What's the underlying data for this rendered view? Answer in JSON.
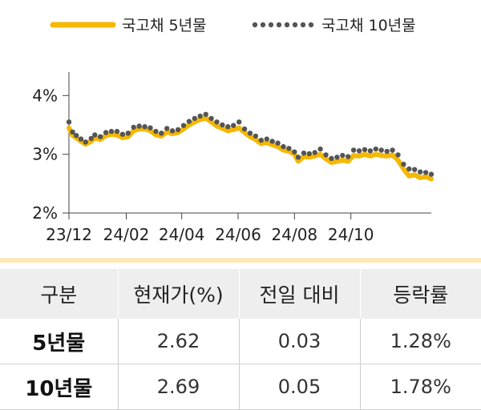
{
  "chart_data": {
    "type": "line",
    "title": "",
    "xlabel": "",
    "ylabel": "",
    "ylim": [
      2,
      4.4
    ],
    "yticks": [
      2,
      3,
      4
    ],
    "ytick_labels": [
      "2%",
      "3%",
      "4%"
    ],
    "xtick_labels": [
      "23/12",
      "24/02",
      "24/04",
      "24/06",
      "24/08",
      "24/10"
    ],
    "legend_position": "top",
    "grid": false,
    "colors": {
      "series_5y": "#f5b700",
      "series_10y": "#555555"
    },
    "x_start": "2023-12-01",
    "x_end": "2024-12-27",
    "series": [
      {
        "name": "국고채 5년물",
        "style": "solid",
        "points": [
          [
            "2023-12-01",
            3.45
          ],
          [
            "2023-12-05",
            3.32
          ],
          [
            "2023-12-09",
            3.28
          ],
          [
            "2023-12-14",
            3.22
          ],
          [
            "2023-12-19",
            3.17
          ],
          [
            "2023-12-25",
            3.22
          ],
          [
            "2023-12-29",
            3.28
          ],
          [
            "2024-01-04",
            3.25
          ],
          [
            "2024-01-10",
            3.32
          ],
          [
            "2024-01-16",
            3.34
          ],
          [
            "2024-01-22",
            3.33
          ],
          [
            "2024-01-28",
            3.28
          ],
          [
            "2024-02-03",
            3.3
          ],
          [
            "2024-02-09",
            3.4
          ],
          [
            "2024-02-15",
            3.43
          ],
          [
            "2024-02-21",
            3.43
          ],
          [
            "2024-02-27",
            3.4
          ],
          [
            "2024-03-04",
            3.33
          ],
          [
            "2024-03-10",
            3.31
          ],
          [
            "2024-03-16",
            3.38
          ],
          [
            "2024-03-22",
            3.35
          ],
          [
            "2024-03-28",
            3.37
          ],
          [
            "2024-04-03",
            3.43
          ],
          [
            "2024-04-09",
            3.5
          ],
          [
            "2024-04-15",
            3.55
          ],
          [
            "2024-04-21",
            3.59
          ],
          [
            "2024-04-27",
            3.62
          ],
          [
            "2024-05-03",
            3.55
          ],
          [
            "2024-05-09",
            3.48
          ],
          [
            "2024-05-15",
            3.44
          ],
          [
            "2024-05-21",
            3.4
          ],
          [
            "2024-05-27",
            3.42
          ],
          [
            "2024-06-02",
            3.45
          ],
          [
            "2024-06-08",
            3.37
          ],
          [
            "2024-06-14",
            3.3
          ],
          [
            "2024-06-20",
            3.25
          ],
          [
            "2024-06-26",
            3.18
          ],
          [
            "2024-07-02",
            3.2
          ],
          [
            "2024-07-08",
            3.16
          ],
          [
            "2024-07-14",
            3.13
          ],
          [
            "2024-07-20",
            3.07
          ],
          [
            "2024-07-26",
            3.05
          ],
          [
            "2024-08-01",
            3.0
          ],
          [
            "2024-08-05",
            2.88
          ],
          [
            "2024-08-11",
            2.96
          ],
          [
            "2024-08-17",
            2.95
          ],
          [
            "2024-08-23",
            2.97
          ],
          [
            "2024-08-29",
            3.0
          ],
          [
            "2024-09-04",
            2.92
          ],
          [
            "2024-09-10",
            2.86
          ],
          [
            "2024-09-16",
            2.88
          ],
          [
            "2024-09-22",
            2.9
          ],
          [
            "2024-09-28",
            2.88
          ],
          [
            "2024-10-04",
            2.98
          ],
          [
            "2024-10-10",
            2.97
          ],
          [
            "2024-10-16",
            3.0
          ],
          [
            "2024-10-22",
            2.97
          ],
          [
            "2024-10-28",
            3.0
          ],
          [
            "2024-11-03",
            2.98
          ],
          [
            "2024-11-09",
            2.97
          ],
          [
            "2024-11-15",
            2.99
          ],
          [
            "2024-11-21",
            2.9
          ],
          [
            "2024-11-27",
            2.75
          ],
          [
            "2024-12-03",
            2.63
          ],
          [
            "2024-12-09",
            2.65
          ],
          [
            "2024-12-15",
            2.6
          ],
          [
            "2024-12-21",
            2.62
          ],
          [
            "2024-12-27",
            2.58
          ]
        ]
      },
      {
        "name": "국고채 10년물",
        "style": "dotted",
        "points": [
          [
            "2023-12-01",
            3.55
          ],
          [
            "2023-12-05",
            3.38
          ],
          [
            "2023-12-09",
            3.32
          ],
          [
            "2023-12-14",
            3.26
          ],
          [
            "2023-12-19",
            3.21
          ],
          [
            "2023-12-25",
            3.27
          ],
          [
            "2023-12-29",
            3.33
          ],
          [
            "2024-01-04",
            3.3
          ],
          [
            "2024-01-10",
            3.37
          ],
          [
            "2024-01-16",
            3.39
          ],
          [
            "2024-01-22",
            3.39
          ],
          [
            "2024-01-28",
            3.34
          ],
          [
            "2024-02-03",
            3.36
          ],
          [
            "2024-02-09",
            3.46
          ],
          [
            "2024-02-15",
            3.48
          ],
          [
            "2024-02-21",
            3.47
          ],
          [
            "2024-02-27",
            3.45
          ],
          [
            "2024-03-04",
            3.39
          ],
          [
            "2024-03-10",
            3.36
          ],
          [
            "2024-03-16",
            3.44
          ],
          [
            "2024-03-22",
            3.4
          ],
          [
            "2024-03-28",
            3.42
          ],
          [
            "2024-04-03",
            3.49
          ],
          [
            "2024-04-09",
            3.56
          ],
          [
            "2024-04-15",
            3.61
          ],
          [
            "2024-04-21",
            3.65
          ],
          [
            "2024-04-27",
            3.68
          ],
          [
            "2024-05-03",
            3.61
          ],
          [
            "2024-05-09",
            3.55
          ],
          [
            "2024-05-15",
            3.5
          ],
          [
            "2024-05-21",
            3.47
          ],
          [
            "2024-05-27",
            3.49
          ],
          [
            "2024-06-02",
            3.55
          ],
          [
            "2024-06-08",
            3.43
          ],
          [
            "2024-06-14",
            3.36
          ],
          [
            "2024-06-20",
            3.31
          ],
          [
            "2024-06-26",
            3.24
          ],
          [
            "2024-07-02",
            3.26
          ],
          [
            "2024-07-08",
            3.22
          ],
          [
            "2024-07-14",
            3.19
          ],
          [
            "2024-07-20",
            3.13
          ],
          [
            "2024-07-26",
            3.1
          ],
          [
            "2024-08-01",
            3.04
          ],
          [
            "2024-08-05",
            2.95
          ],
          [
            "2024-08-11",
            3.02
          ],
          [
            "2024-08-17",
            3.01
          ],
          [
            "2024-08-23",
            3.03
          ],
          [
            "2024-08-29",
            3.09
          ],
          [
            "2024-09-04",
            2.99
          ],
          [
            "2024-09-10",
            2.93
          ],
          [
            "2024-09-16",
            2.95
          ],
          [
            "2024-09-22",
            2.98
          ],
          [
            "2024-09-28",
            2.96
          ],
          [
            "2024-10-04",
            3.07
          ],
          [
            "2024-10-10",
            3.06
          ],
          [
            "2024-10-16",
            3.08
          ],
          [
            "2024-10-22",
            3.06
          ],
          [
            "2024-10-28",
            3.09
          ],
          [
            "2024-11-03",
            3.07
          ],
          [
            "2024-11-09",
            3.05
          ],
          [
            "2024-11-15",
            3.07
          ],
          [
            "2024-11-21",
            2.99
          ],
          [
            "2024-11-27",
            2.83
          ],
          [
            "2024-12-03",
            2.75
          ],
          [
            "2024-12-09",
            2.74
          ],
          [
            "2024-12-15",
            2.7
          ],
          [
            "2024-12-21",
            2.69
          ],
          [
            "2024-12-27",
            2.66
          ]
        ]
      }
    ]
  },
  "table": {
    "headers": [
      "구분",
      "현재가(%)",
      "전일 대비",
      "등락률"
    ],
    "rows": [
      {
        "label": "5년물",
        "price": "2.62",
        "change": "0.03",
        "rate": "1.28%"
      },
      {
        "label": "10년물",
        "price": "2.69",
        "change": "0.05",
        "rate": "1.78%"
      }
    ]
  }
}
